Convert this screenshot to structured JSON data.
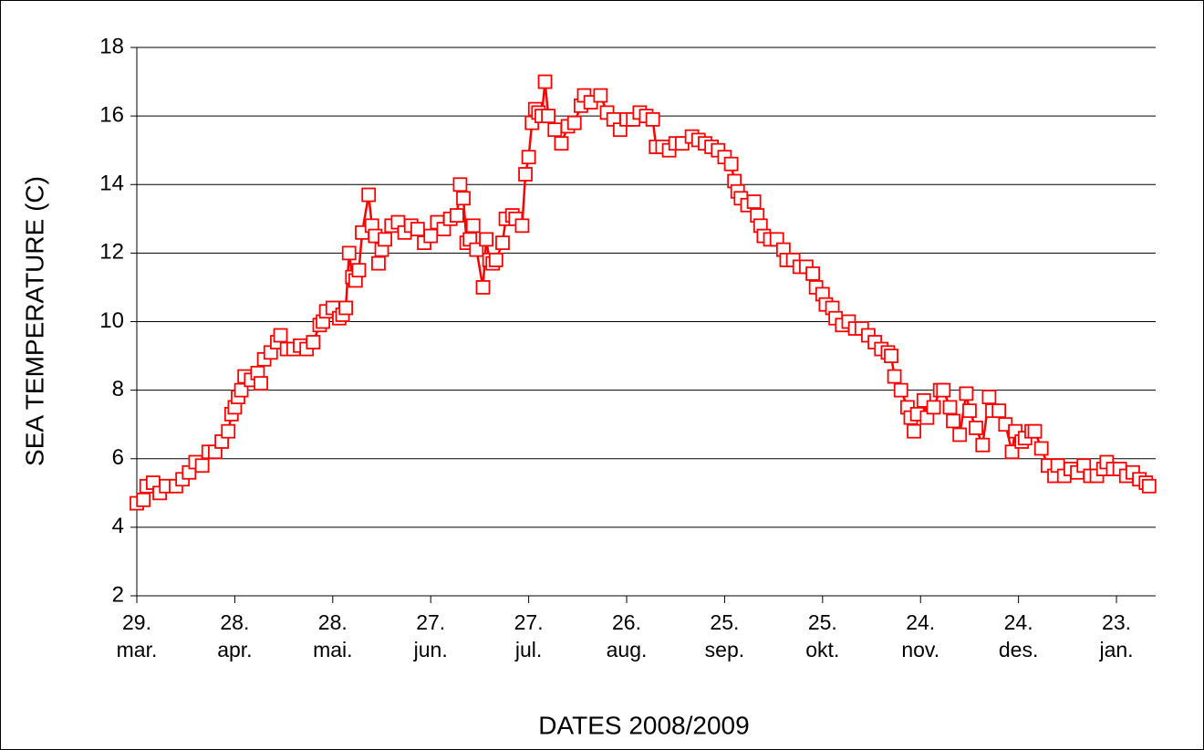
{
  "chart_data": {
    "type": "line",
    "ylabel": "SEA TEMPERATURE (C)",
    "xlabel": "DATES 2008/2009",
    "color": "#ff0000",
    "marker": "square",
    "grid": true,
    "x": [
      0,
      2,
      3,
      5,
      7,
      9,
      12,
      14,
      16,
      18,
      20,
      22,
      24,
      26,
      28,
      29,
      30,
      31,
      32,
      33,
      35,
      37,
      38,
      39,
      41,
      43,
      44,
      46,
      48,
      50,
      52,
      54,
      56,
      57,
      58,
      60,
      62,
      63,
      64,
      65,
      66,
      67,
      68,
      69,
      71,
      72,
      73,
      74,
      75,
      76,
      78,
      80,
      82,
      84,
      86,
      88,
      90,
      92,
      94,
      96,
      98,
      99,
      100,
      101,
      102,
      103,
      104,
      106,
      107,
      108,
      109,
      110,
      112,
      113,
      115,
      116,
      118,
      119,
      120,
      121,
      122,
      123,
      124,
      125,
      126,
      128,
      130,
      132,
      134,
      136,
      137,
      139,
      142,
      144,
      146,
      148,
      150,
      152,
      154,
      156,
      158,
      159,
      161,
      163,
      165,
      167,
      170,
      172,
      174,
      176,
      178,
      180,
      182,
      183,
      184,
      185,
      187,
      189,
      190,
      191,
      192,
      194,
      196,
      198,
      199,
      201,
      203,
      205,
      207,
      208,
      210,
      211,
      213,
      214,
      216,
      218,
      220,
      222,
      224,
      226,
      228,
      230,
      231,
      232,
      234,
      236,
      237,
      238,
      239,
      241,
      242,
      244,
      246,
      247,
      249,
      250,
      252,
      254,
      255,
      257,
      259,
      261,
      262,
      264,
      266,
      268,
      269,
      271,
      272,
      274,
      275,
      277,
      279,
      281,
      282,
      284,
      286,
      288,
      290,
      292,
      294,
      296,
      297,
      299,
      301,
      303,
      305,
      307,
      309,
      310
    ],
    "values": [
      4.7,
      4.8,
      5.2,
      5.3,
      5.0,
      5.2,
      5.2,
      5.4,
      5.6,
      5.9,
      5.8,
      6.2,
      6.2,
      6.5,
      6.8,
      7.3,
      7.5,
      7.8,
      8.0,
      8.4,
      8.3,
      8.5,
      8.2,
      8.9,
      9.1,
      9.4,
      9.6,
      9.2,
      9.2,
      9.3,
      9.2,
      9.4,
      9.9,
      10.0,
      10.3,
      10.4,
      10.1,
      10.2,
      10.4,
      12.0,
      11.3,
      11.2,
      11.5,
      12.6,
      13.7,
      12.8,
      12.5,
      11.7,
      12.1,
      12.4,
      12.8,
      12.9,
      12.6,
      12.8,
      12.7,
      12.3,
      12.5,
      12.9,
      12.7,
      13.0,
      13.1,
      14.0,
      13.6,
      12.3,
      12.4,
      12.8,
      12.1,
      11.0,
      12.4,
      11.8,
      11.7,
      11.8,
      12.3,
      13.0,
      13.1,
      13.0,
      12.8,
      14.3,
      14.8,
      15.8,
      16.2,
      16.1,
      16.0,
      17.0,
      16.0,
      15.6,
      15.2,
      15.7,
      15.8,
      16.3,
      16.6,
      16.4,
      16.6,
      16.1,
      15.9,
      15.6,
      15.9,
      15.9,
      16.1,
      16.0,
      15.9,
      15.1,
      15.1,
      15.0,
      15.2,
      15.2,
      15.4,
      15.3,
      15.2,
      15.1,
      15.0,
      14.8,
      14.6,
      14.1,
      13.8,
      13.6,
      13.4,
      13.5,
      13.1,
      12.8,
      12.5,
      12.4,
      12.4,
      12.1,
      11.8,
      11.8,
      11.6,
      11.6,
      11.4,
      11.0,
      10.8,
      10.5,
      10.4,
      10.1,
      9.9,
      10.0,
      9.8,
      9.8,
      9.6,
      9.4,
      9.2,
      9.1,
      9.0,
      8.4,
      8.0,
      7.5,
      7.2,
      6.8,
      7.3,
      7.7,
      7.2,
      7.5,
      8.0,
      8.0,
      7.5,
      7.1,
      6.7,
      7.9,
      7.4,
      6.9,
      6.4,
      7.8,
      7.4,
      7.4,
      7.0,
      6.2,
      6.8,
      6.5,
      6.6,
      6.8,
      6.8,
      6.3,
      5.8,
      5.5,
      5.8,
      5.5,
      5.7,
      5.6,
      5.8,
      5.5,
      5.5,
      5.7,
      5.9,
      5.7,
      5.7,
      5.5,
      5.6,
      5.4,
      5.3,
      5.2
    ],
    "xlim": [
      0,
      312
    ],
    "xticks": [
      {
        "value": 0,
        "label": "29.\nmar."
      },
      {
        "value": 30,
        "label": "28.\napr."
      },
      {
        "value": 60,
        "label": "28.\nmai."
      },
      {
        "value": 90,
        "label": "27.\njun."
      },
      {
        "value": 120,
        "label": "27.\njul."
      },
      {
        "value": 150,
        "label": "26.\naug."
      },
      {
        "value": 180,
        "label": "25.\nsep."
      },
      {
        "value": 210,
        "label": "25.\nokt."
      },
      {
        "value": 240,
        "label": "24.\nnov."
      },
      {
        "value": 270,
        "label": "24.\ndes."
      },
      {
        "value": 300,
        "label": "23.\njan."
      }
    ],
    "ylim": [
      2,
      18
    ],
    "yticks": [
      2,
      4,
      6,
      8,
      10,
      12,
      14,
      16,
      18
    ]
  }
}
